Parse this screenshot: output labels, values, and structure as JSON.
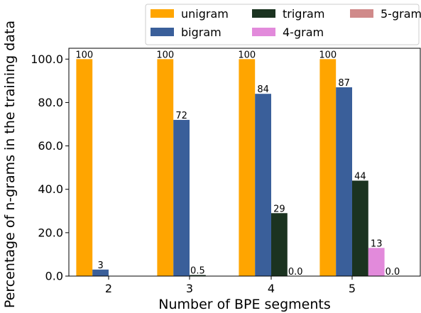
{
  "chart_data": {
    "type": "bar",
    "title": "",
    "xlabel": "Number of BPE segments",
    "ylabel": "Percentage of n-grams in the training data",
    "categories": [
      "2",
      "3",
      "4",
      "5"
    ],
    "ylim": [
      0,
      105
    ],
    "yticks": [
      0,
      20,
      40,
      60,
      80,
      100
    ],
    "ytick_labels": [
      "0.0",
      "20.0",
      "40.0",
      "60.0",
      "80.0",
      "100.0"
    ],
    "grid": false,
    "legend_position": "top-right, above plot",
    "series": [
      {
        "name": "unigram",
        "color": "#FFA500",
        "values": [
          100,
          100,
          100,
          100
        ],
        "labels": [
          "100",
          "100",
          "100",
          "100"
        ]
      },
      {
        "name": "bigram",
        "color": "#3A5F9A",
        "values": [
          3,
          72,
          84,
          87
        ],
        "labels": [
          "3",
          "72",
          "84",
          "87"
        ]
      },
      {
        "name": "trigram",
        "color": "#1B3320",
        "values": [
          null,
          0.5,
          29,
          44
        ],
        "labels": [
          null,
          "0.5",
          "29",
          "44"
        ]
      },
      {
        "name": "4-gram",
        "color": "#E28ADB",
        "values": [
          null,
          null,
          0.0,
          13
        ],
        "labels": [
          null,
          null,
          "0.0",
          "13"
        ]
      },
      {
        "name": "5-gram",
        "color": "#D08A8A",
        "values": [
          null,
          null,
          null,
          0.0
        ],
        "labels": [
          null,
          null,
          null,
          "0.0"
        ]
      }
    ]
  }
}
